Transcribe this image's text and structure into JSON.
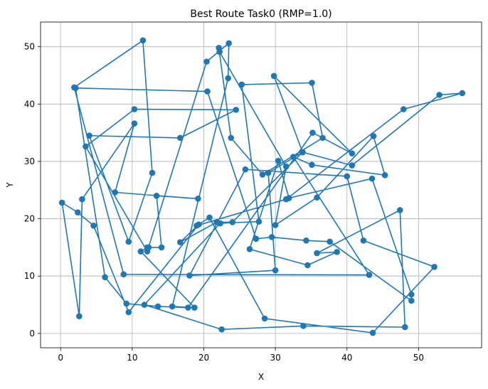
{
  "chart_data": {
    "type": "line",
    "title": "Best Route Task0 (RMP=1.0)",
    "xlabel": "X",
    "ylabel": "Y",
    "xlim": [
      -2.8,
      58.8
    ],
    "ylim": [
      -2.5,
      54.3
    ],
    "xticks": [
      0,
      10,
      20,
      30,
      40,
      50
    ],
    "yticks": [
      0,
      10,
      20,
      30,
      40,
      50
    ],
    "grid": true,
    "line_color": "#1f77b4",
    "marker": "circle",
    "series": [
      {
        "x": [
          0.2,
          2.4,
          4.6,
          9.5,
          19.3,
          16.7,
          21.8,
          24.0,
          33.8,
          40.7,
          52.9,
          56.1,
          47.9,
          31.5,
          19.0,
          20.8,
          28.5,
          43.6,
          52.2,
          42.3,
          40.0,
          25.8,
          18.0,
          30.0,
          29.0,
          33.8,
          29.8,
          40.7,
          35.2,
          17.8,
          13.6,
          9.2,
          6.2,
          2.1,
          20.5,
          27.3,
          29.5,
          34.3,
          37.6,
          49.0,
          49.0,
          43.5,
          31.9,
          30.4,
          26.4,
          34.5,
          38.6,
          35.8,
          47.4,
          48.1,
          33.9,
          22.5,
          11.7,
          22.3,
          27.7,
          25.3,
          35.1,
          36.6,
          28.2,
          23.8,
          22.1,
          22.2,
          31.5,
          30.0,
          35.8,
          43.7,
          45.3,
          35.1,
          32.5,
          43.1,
          8.8,
          1.9,
          11.5,
          12.8,
          9.5,
          4.0,
          16.7,
          24.5,
          10.3,
          3.5,
          12.1,
          20.4,
          23.5,
          23.4,
          15.6,
          18.7,
          11.2,
          12.1,
          12.3,
          14.1,
          13.4,
          19.2,
          7.6,
          10.3,
          3.0,
          2.6,
          0.2
        ],
        "y": [
          22.8,
          21.1,
          18.8,
          3.7,
          19.0,
          15.9,
          19.4,
          19.4,
          31.6,
          29.3,
          41.6,
          41.9,
          39.1,
          23.4,
          18.8,
          20.2,
          2.6,
          0.1,
          11.6,
          16.2,
          27.4,
          28.6,
          10.1,
          11.0,
          28.0,
          31.6,
          44.9,
          31.4,
          35.0,
          4.5,
          4.7,
          5.2,
          9.8,
          42.8,
          42.2,
          16.5,
          16.8,
          16.2,
          16.0,
          5.7,
          6.8,
          27.0,
          23.6,
          30.1,
          14.7,
          11.9,
          14.2,
          14.0,
          21.5,
          1.1,
          1.3,
          0.7,
          5.0,
          19.2,
          19.5,
          43.4,
          43.7,
          34.1,
          27.7,
          34.1,
          49.8,
          49.1,
          29.1,
          18.9,
          23.7,
          34.4,
          27.6,
          29.4,
          30.8,
          10.2,
          10.3,
          42.9,
          51.1,
          28.0,
          16.0,
          34.5,
          34.1,
          39.0,
          39.1,
          32.6,
          14.3,
          47.4,
          50.6,
          44.5,
          4.7,
          4.5,
          14.3,
          15.0,
          15.0,
          15.0,
          24.0,
          23.5,
          24.6,
          36.6,
          23.4,
          3.0,
          22.8
        ]
      }
    ]
  }
}
